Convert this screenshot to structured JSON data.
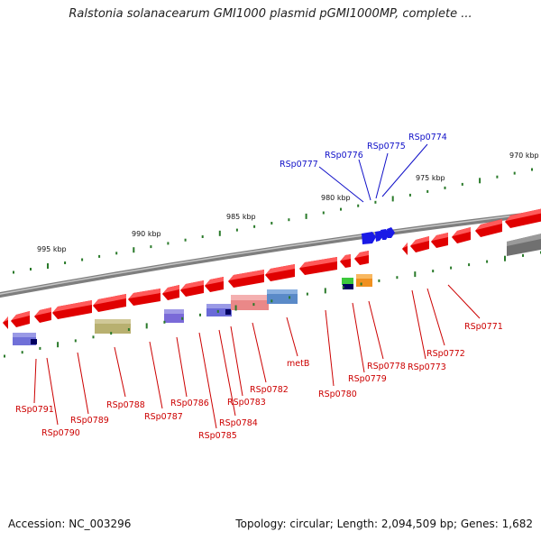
{
  "title": "Ralstonia solanacearum GMI1000 plasmid pGMI1000MP, complete ...",
  "footer": {
    "accession": "Accession: NC_003296",
    "stats": "Topology: circular; Length: 2,094,509 bp; Genes: 1,682"
  },
  "colors": {
    "backbone": "#8a8a8a",
    "gene_red": "#e00000",
    "gene_blue": "#1a1ae6",
    "tick_green": "#2a7a2a",
    "label_red": "#cc0000",
    "label_blue": "#1010c8"
  },
  "ticks": [
    {
      "label": "970 kbp"
    },
    {
      "label": "975 kbp"
    },
    {
      "label": "980 kbp"
    },
    {
      "label": "985 kbp"
    },
    {
      "label": "990 kbp"
    },
    {
      "label": "995 kbp"
    }
  ],
  "top_labels": [
    "RSp0774",
    "RSp0775",
    "RSp0776",
    "RSp0777"
  ],
  "bottom_labels": [
    "RSp0771",
    "RSp0772",
    "RSp0773",
    "RSp0778",
    "RSp0779",
    "RSp0780",
    "metB",
    "RSp0782",
    "RSp0783",
    "RSp0784",
    "RSp0785",
    "RSp0786",
    "RSp0787",
    "RSp0788",
    "RSp0789",
    "RSp0790",
    "RSp0791"
  ]
}
